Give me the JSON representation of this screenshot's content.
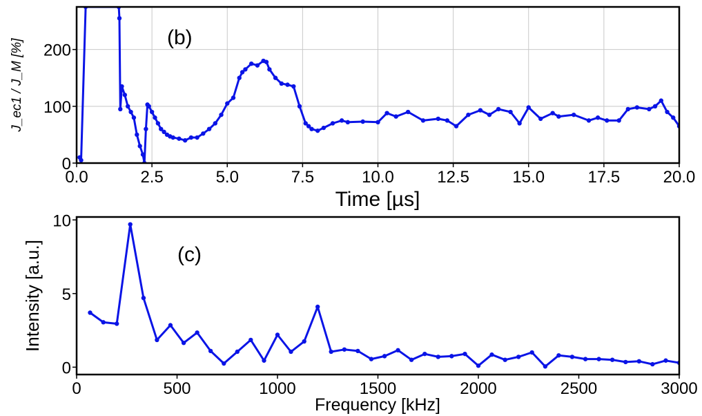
{
  "chart_data": [
    {
      "type": "line",
      "panel_label": "(b)",
      "xlabel": "Time [µs]",
      "ylabel": "J_ec1 / J_M [%]",
      "xlim": [
        0,
        20
      ],
      "ylim": [
        0,
        275
      ],
      "xticks": [
        "0.0",
        "2.5",
        "5.0",
        "7.5",
        "10.0",
        "12.5",
        "15.0",
        "17.5",
        "20.0"
      ],
      "xtick_values": [
        0,
        2.5,
        5,
        7.5,
        10,
        12.5,
        15,
        17.5,
        20
      ],
      "yticks": [
        "0",
        "100",
        "200"
      ],
      "ytick_values": [
        0,
        100,
        200
      ],
      "grid": true,
      "color": "#0a14e6",
      "series": [
        {
          "x": [
            0.1,
            0.15,
            0.3,
            1.4,
            1.42,
            1.45,
            1.5,
            1.6,
            1.7,
            1.8,
            1.9,
            2.0,
            2.1,
            2.2,
            2.25,
            2.3,
            2.35,
            2.4,
            2.5,
            2.6,
            2.7,
            2.8,
            2.9,
            3.0,
            3.1,
            3.2,
            3.4,
            3.6,
            3.8,
            4.0,
            4.2,
            4.4,
            4.6,
            4.8,
            5.0,
            5.2,
            5.4,
            5.5,
            5.6,
            5.8,
            6.0,
            6.2,
            6.3,
            6.4,
            6.6,
            6.8,
            7.0,
            7.2,
            7.4,
            7.6,
            7.7,
            7.8,
            8.0,
            8.2,
            8.5,
            8.8,
            9.0,
            9.5,
            10.0,
            10.3,
            10.6,
            11.0,
            11.5,
            12.0,
            12.3,
            12.6,
            13.0,
            13.4,
            13.7,
            14.0,
            14.4,
            14.7,
            15.0,
            15.4,
            15.8,
            16.0,
            16.5,
            17.0,
            17.3,
            17.6,
            18.0,
            18.3,
            18.6,
            19.0,
            19.2,
            19.4,
            19.6,
            19.8,
            20.0
          ],
          "y": [
            10,
            5,
            275,
            275,
            255,
            95,
            135,
            120,
            100,
            90,
            80,
            50,
            30,
            15,
            0,
            60,
            103,
            100,
            90,
            80,
            70,
            60,
            55,
            50,
            47,
            45,
            43,
            40,
            45,
            45,
            52,
            60,
            70,
            85,
            105,
            115,
            150,
            160,
            165,
            175,
            172,
            180,
            178,
            165,
            150,
            140,
            138,
            135,
            100,
            70,
            65,
            60,
            57,
            62,
            70,
            75,
            72,
            73,
            72,
            88,
            82,
            90,
            75,
            78,
            75,
            65,
            85,
            93,
            85,
            95,
            90,
            70,
            98,
            78,
            88,
            82,
            85,
            75,
            80,
            75,
            75,
            95,
            98,
            95,
            100,
            110,
            90,
            80,
            65
          ]
        }
      ]
    },
    {
      "type": "line",
      "panel_label": "(c)",
      "xlabel": "Frequency [kHz]",
      "ylabel": "Intensity [a.u.]",
      "xlim": [
        0,
        3000
      ],
      "ylim": [
        -0.5,
        10.2
      ],
      "xticks": [
        "0",
        "500",
        "1000",
        "1500",
        "2000",
        "2500",
        "3000"
      ],
      "xtick_values": [
        0,
        500,
        1000,
        1500,
        2000,
        2500,
        3000
      ],
      "yticks": [
        "0",
        "5",
        "10"
      ],
      "ytick_values": [
        0,
        5,
        10
      ],
      "grid": false,
      "color": "#0a14e6",
      "series": [
        {
          "x": [
            67,
            133,
            200,
            267,
            333,
            400,
            467,
            533,
            600,
            667,
            733,
            800,
            867,
            933,
            1000,
            1067,
            1133,
            1200,
            1267,
            1333,
            1400,
            1467,
            1533,
            1600,
            1667,
            1733,
            1800,
            1867,
            1933,
            2000,
            2067,
            2133,
            2200,
            2267,
            2333,
            2400,
            2467,
            2533,
            2600,
            2667,
            2733,
            2800,
            2867,
            2933,
            3000
          ],
          "y": [
            3.7,
            3.05,
            2.95,
            9.7,
            4.7,
            1.85,
            2.85,
            1.65,
            2.35,
            1.1,
            0.25,
            1.05,
            1.85,
            0.45,
            2.2,
            1.05,
            1.75,
            4.1,
            1.05,
            1.2,
            1.1,
            0.55,
            0.75,
            1.15,
            0.5,
            0.9,
            0.7,
            0.75,
            0.9,
            0.1,
            0.85,
            0.5,
            0.7,
            1.0,
            0.05,
            0.8,
            0.7,
            0.55,
            0.55,
            0.5,
            0.35,
            0.4,
            0.2,
            0.45,
            0.3
          ]
        }
      ]
    }
  ]
}
